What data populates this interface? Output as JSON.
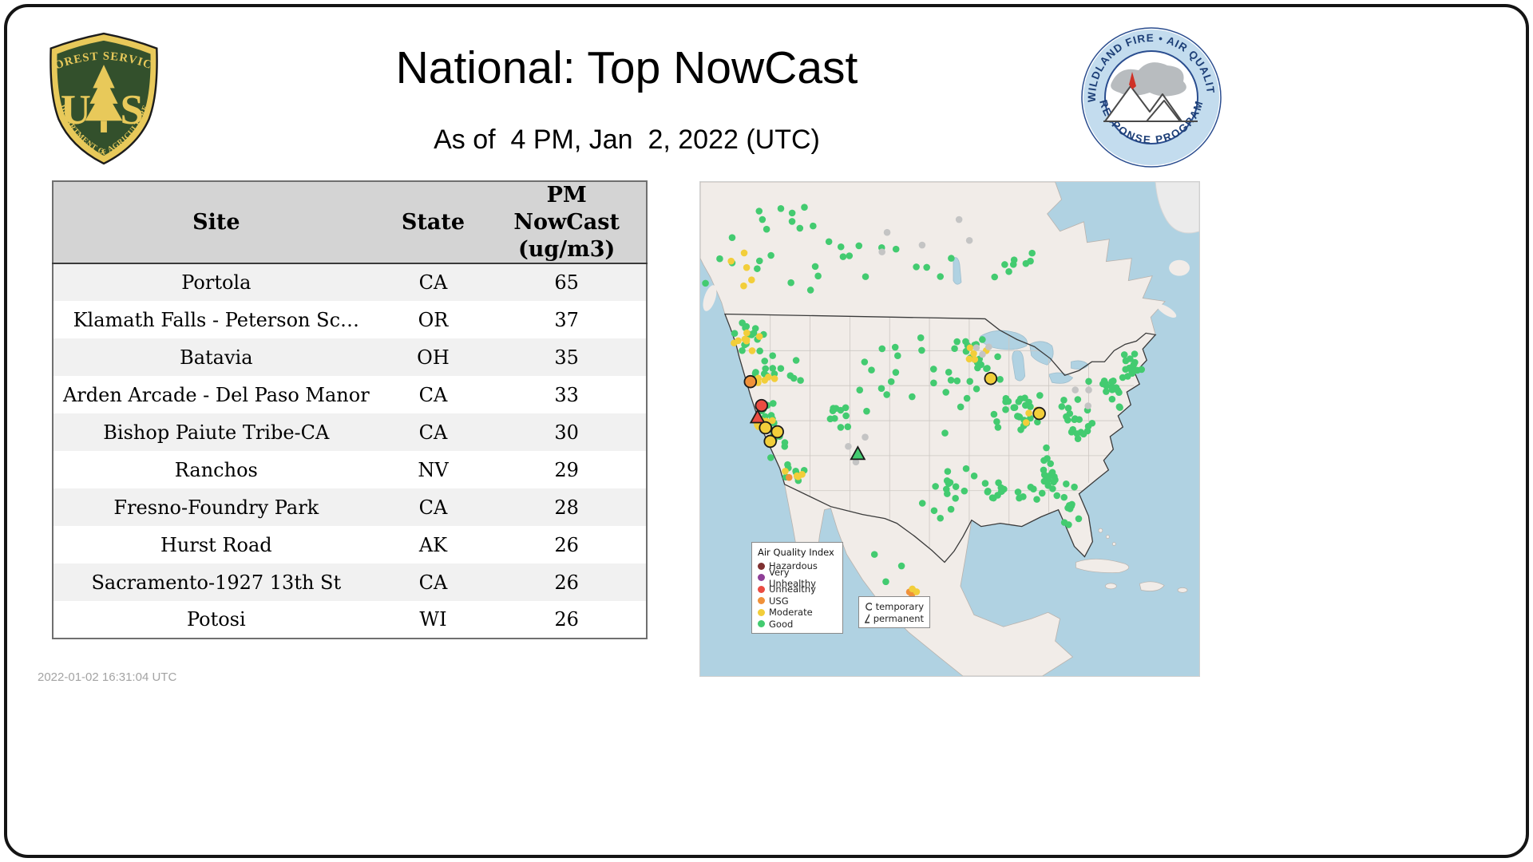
{
  "header": {
    "title": "National: Top NowCast",
    "subtitle": "As of  4 PM, Jan  2, 2022 (UTC)",
    "usfs_logo": {
      "top": "FOREST SERVICE",
      "u": "U",
      "s": "S",
      "bottom": "DEPARTMENT OF AGRICULTURE"
    },
    "wfaqrp_logo": {
      "top": "WILDLAND FIRE • AIR QUALITY",
      "bottom": "RESPONSE PROGRAM"
    }
  },
  "table": {
    "columns": [
      "Site",
      "State",
      "PM\nNowCast\n(ug/m3)"
    ],
    "rows": [
      [
        "Portola",
        "CA",
        "65"
      ],
      [
        "Klamath Falls - Peterson Sc…",
        "OR",
        "37"
      ],
      [
        "Batavia",
        "OH",
        "35"
      ],
      [
        "Arden Arcade - Del Paso Manor",
        "CA",
        "33"
      ],
      [
        "Bishop Paiute Tribe-CA",
        "CA",
        "30"
      ],
      [
        "Ranchos",
        "NV",
        "29"
      ],
      [
        "Fresno-Foundry Park",
        "CA",
        "28"
      ],
      [
        "Hurst Road",
        "AK",
        "26"
      ],
      [
        "Sacramento-1927 13th St",
        "CA",
        "26"
      ],
      [
        "Potosi",
        "WI",
        "26"
      ]
    ]
  },
  "chart_data": {
    "type": "table",
    "title": "National: Top NowCast",
    "as_of": "As of 4 PM, Jan 2, 2022 (UTC)",
    "columns": [
      "Site",
      "State",
      "PM NowCast (ug/m3)"
    ],
    "rows": [
      [
        "Portola",
        "CA",
        65
      ],
      [
        "Klamath Falls - Peterson Sc…",
        "OR",
        37
      ],
      [
        "Batavia",
        "OH",
        35
      ],
      [
        "Arden Arcade - Del Paso Manor",
        "CA",
        33
      ],
      [
        "Bishop Paiute Tribe-CA",
        "CA",
        30
      ],
      [
        "Ranchos",
        "NV",
        29
      ],
      [
        "Fresno-Foundry Park",
        "CA",
        28
      ],
      [
        "Hurst Road",
        "AK",
        26
      ],
      [
        "Sacramento-1927 13th St",
        "CA",
        26
      ],
      [
        "Potosi",
        "WI",
        26
      ]
    ]
  },
  "map": {
    "dot_colors": {
      "good": "#43cb70",
      "moderate": "#f2ce3a",
      "usg": "#f0913a",
      "unhealthy": "#ea4c42",
      "very_unhealthy": "#8f3f97",
      "hazardous": "#7e3030",
      "gray": "#c4c4c4"
    },
    "aqi_legend": {
      "title": "Air Quality Index",
      "items": [
        {
          "label": "Hazardous",
          "color": "#7e3030"
        },
        {
          "label": "Very Unhealthy",
          "color": "#8f3f97"
        },
        {
          "label": "Unhealthy",
          "color": "#ea4c42"
        },
        {
          "label": "USG",
          "color": "#f0913a"
        },
        {
          "label": "Moderate",
          "color": "#f2ce3a"
        },
        {
          "label": "Good",
          "color": "#43cb70"
        }
      ]
    },
    "marker_legend": {
      "items": [
        {
          "label": "temporary",
          "shape": "circle"
        },
        {
          "label": "permanent",
          "shape": "triangle"
        }
      ]
    },
    "clusters": [
      [
        90,
        80,
        90,
        70,
        18,
        "good"
      ],
      [
        45,
        105,
        35,
        35,
        5,
        "moderate"
      ],
      [
        230,
        80,
        120,
        60,
        14,
        "good"
      ],
      [
        400,
        90,
        45,
        45,
        8,
        "good"
      ],
      [
        260,
        60,
        140,
        40,
        5,
        "gray"
      ],
      [
        55,
        195,
        28,
        22,
        16,
        "good"
      ],
      [
        60,
        200,
        30,
        25,
        8,
        "moderate"
      ],
      [
        95,
        235,
        45,
        30,
        14,
        "good"
      ],
      [
        80,
        245,
        25,
        20,
        5,
        "moderate"
      ],
      [
        85,
        295,
        22,
        28,
        12,
        "good"
      ],
      [
        82,
        300,
        18,
        22,
        6,
        "moderate"
      ],
      [
        100,
        330,
        20,
        20,
        8,
        "good"
      ],
      [
        118,
        362,
        20,
        14,
        8,
        "good"
      ],
      [
        115,
        365,
        15,
        10,
        4,
        "moderate"
      ],
      [
        111,
        372,
        2,
        2,
        1,
        "usg"
      ],
      [
        165,
        290,
        40,
        50,
        10,
        "good"
      ],
      [
        205,
        330,
        30,
        30,
        3,
        "gray"
      ],
      [
        230,
        250,
        50,
        60,
        12,
        "good"
      ],
      [
        300,
        260,
        50,
        70,
        14,
        "good"
      ],
      [
        345,
        225,
        35,
        28,
        18,
        "good"
      ],
      [
        342,
        212,
        22,
        15,
        5,
        "moderate"
      ],
      [
        358,
        208,
        15,
        10,
        3,
        "gray"
      ],
      [
        400,
        280,
        45,
        40,
        26,
        "good"
      ],
      [
        420,
        300,
        30,
        25,
        3,
        "moderate"
      ],
      [
        310,
        390,
        45,
        40,
        16,
        "good"
      ],
      [
        380,
        380,
        40,
        35,
        14,
        "good"
      ],
      [
        440,
        370,
        40,
        40,
        22,
        "good"
      ],
      [
        465,
        420,
        13,
        28,
        9,
        "good"
      ],
      [
        480,
        300,
        35,
        35,
        20,
        "good"
      ],
      [
        520,
        255,
        35,
        35,
        22,
        "good"
      ],
      [
        545,
        228,
        16,
        22,
        10,
        "good"
      ],
      [
        470,
        280,
        40,
        40,
        3,
        "gray"
      ],
      [
        268,
        518,
        8,
        6,
        3,
        "usg"
      ],
      [
        272,
        512,
        8,
        6,
        2,
        "moderate"
      ],
      [
        230,
        480,
        40,
        40,
        3,
        "good"
      ]
    ],
    "markers": [
      [
        "circle",
        63,
        251,
        "usg"
      ],
      [
        "circle",
        77,
        281,
        "unhealthy"
      ],
      [
        "triangle",
        72,
        296,
        "unhealthy"
      ],
      [
        "circle",
        82,
        309,
        "moderate"
      ],
      [
        "circle",
        97,
        314,
        "moderate"
      ],
      [
        "circle",
        88,
        326,
        "moderate"
      ],
      [
        "circle",
        365,
        247,
        "moderate"
      ],
      [
        "circle",
        426,
        291,
        "moderate"
      ],
      [
        "triangle",
        198,
        342,
        "good"
      ]
    ]
  },
  "footer": {
    "timestamp": "2022-01-02 16:31:04 UTC"
  }
}
